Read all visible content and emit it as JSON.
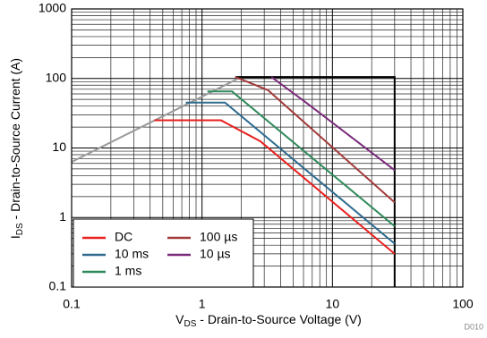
{
  "chart_data": {
    "type": "line",
    "xlabel": [
      "V",
      "DS",
      " - Drain-to-Source Voltage (V)"
    ],
    "ylabel": [
      "I",
      "DS",
      " - Drain-to-Source Current (A)"
    ],
    "figure_id": "D010",
    "x_log": true,
    "y_log": true,
    "grid": true,
    "minor_grid": true,
    "xlim": [
      0.1,
      100
    ],
    "ylim": [
      0.1,
      1000
    ],
    "xticks": [
      0.1,
      1,
      10,
      100
    ],
    "yticks": [
      0.1,
      1,
      10,
      100,
      1000
    ],
    "legend": "lower left",
    "series": [
      {
        "color": "#999999",
        "x": [
          0.1,
          2.0
        ],
        "values": [
          6.3,
          105
        ]
      },
      {
        "color": "#000000",
        "x": [
          1.8,
          30,
          30
        ],
        "values": [
          105,
          105,
          0.1
        ]
      },
      {
        "name": "DC",
        "color": "#e8201e",
        "x": [
          0.43,
          1.4,
          2.8,
          30
        ],
        "values": [
          25,
          25,
          12.5,
          0.3
        ]
      },
      {
        "name": "10 ms",
        "color": "#2e6b8f",
        "x": [
          0.75,
          1.5,
          30
        ],
        "values": [
          45,
          45,
          0.42
        ]
      },
      {
        "name": "1 ms",
        "color": "#2f8a5a",
        "x": [
          1.1,
          1.7,
          30
        ],
        "values": [
          65,
          65,
          0.75
        ]
      },
      {
        "name": "100 µs",
        "color": "#a33a3a",
        "x": [
          1.8,
          3.2,
          30
        ],
        "values": [
          105,
          68,
          1.65
        ]
      },
      {
        "name": "10 µs",
        "color": "#7a2a7a",
        "x": [
          3.4,
          6,
          30
        ],
        "values": [
          105,
          48,
          4.8
        ]
      }
    ]
  }
}
